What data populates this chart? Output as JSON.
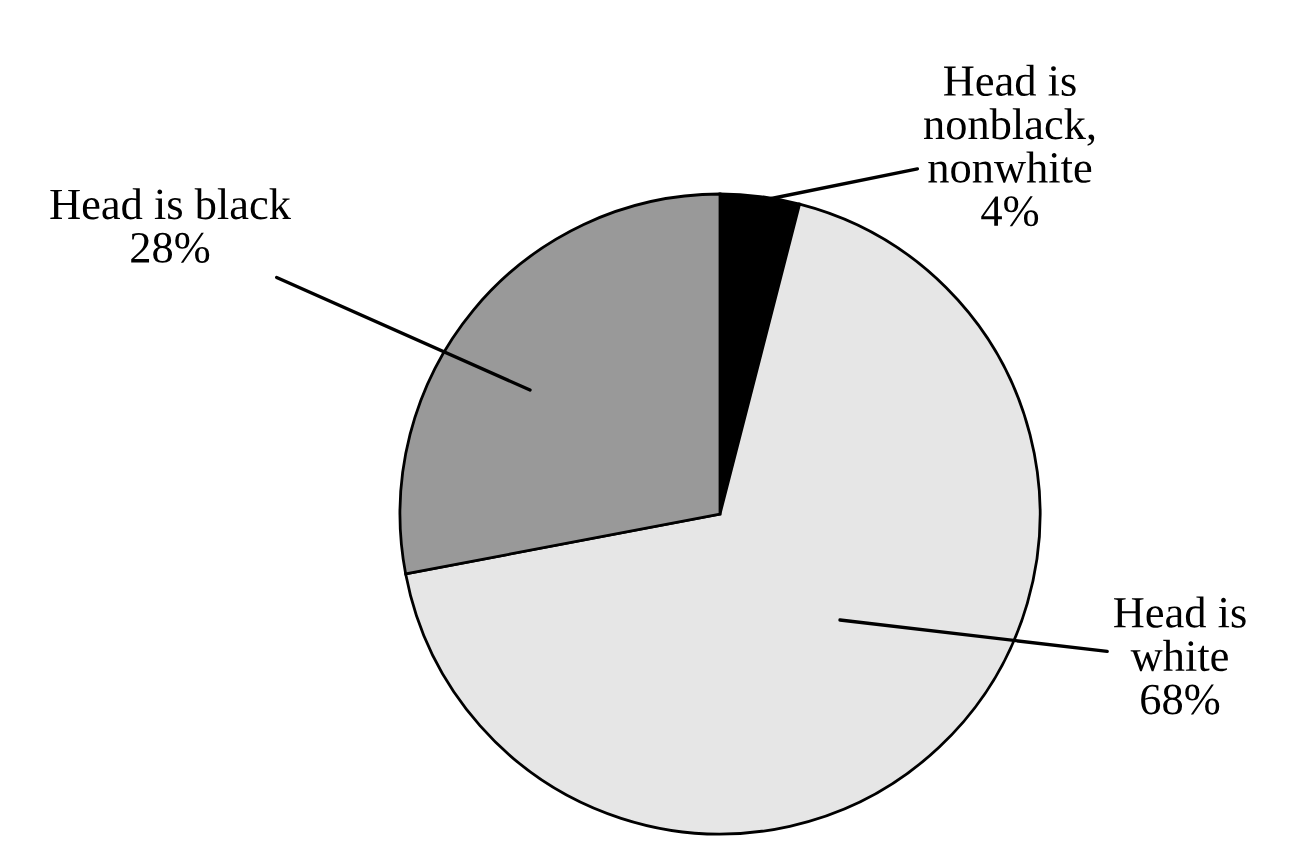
{
  "chart_data": {
    "type": "pie",
    "categories": [
      "Head is nonblack, nonwhite",
      "Head is white",
      "Head is black"
    ],
    "values": [
      4,
      68,
      28
    ],
    "colors": [
      "#000000",
      "#e6e6e6",
      "#999999"
    ],
    "value_labels": [
      "4%",
      "68%",
      "28%"
    ],
    "legend": false
  }
}
